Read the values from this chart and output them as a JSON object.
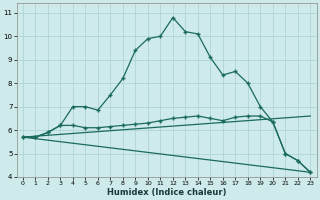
{
  "xlabel": "Humidex (Indice chaleur)",
  "bg_color": "#ceeaea",
  "grid_color": "#b0d4d4",
  "line_color": "#1a6b5a",
  "xlim": [
    -0.5,
    23.5
  ],
  "ylim": [
    4,
    11.4
  ],
  "yticks": [
    4,
    5,
    6,
    7,
    8,
    9,
    10,
    11
  ],
  "xticks": [
    0,
    1,
    2,
    3,
    4,
    5,
    6,
    7,
    8,
    9,
    10,
    11,
    12,
    13,
    14,
    15,
    16,
    17,
    18,
    19,
    20,
    21,
    22,
    23
  ],
  "series1_x": [
    0,
    1,
    2,
    3,
    4,
    5,
    6,
    7,
    8,
    9,
    10,
    11,
    12,
    13,
    14,
    15,
    16,
    17,
    18,
    19,
    20,
    21,
    22,
    23
  ],
  "series1_y": [
    5.7,
    5.7,
    5.9,
    6.2,
    7.0,
    7.0,
    6.85,
    7.5,
    8.2,
    9.4,
    9.9,
    10.0,
    10.8,
    10.2,
    10.1,
    9.1,
    8.35,
    8.5,
    8.0,
    7.0,
    6.35,
    5.0,
    4.7,
    4.2
  ],
  "series2_x": [
    0,
    1,
    2,
    3,
    4,
    5,
    6,
    7,
    8,
    9,
    10,
    11,
    12,
    13,
    14,
    15,
    16,
    17,
    18,
    19,
    20,
    21,
    22,
    23
  ],
  "series2_y": [
    5.7,
    5.7,
    5.9,
    6.2,
    6.2,
    6.1,
    6.1,
    6.15,
    6.2,
    6.25,
    6.3,
    6.4,
    6.5,
    6.55,
    6.6,
    6.5,
    6.4,
    6.55,
    6.6,
    6.6,
    6.35,
    5.0,
    4.7,
    4.2
  ],
  "series3_x": [
    0,
    23
  ],
  "series3_y": [
    5.7,
    4.2
  ],
  "series4_x": [
    0,
    23
  ],
  "series4_y": [
    5.7,
    6.6
  ]
}
